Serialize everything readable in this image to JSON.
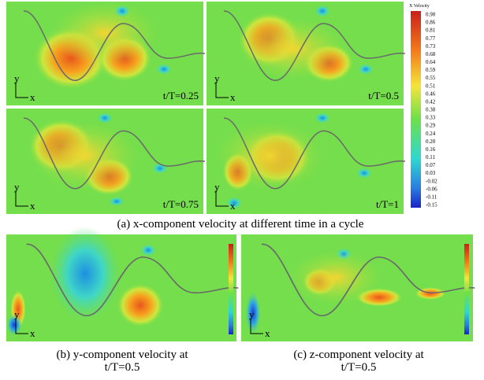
{
  "panels": [
    {
      "time_label": "t/T=0.25",
      "y_axis": "y",
      "x_axis": "x"
    },
    {
      "time_label": "t/T=0.5",
      "y_axis": "y",
      "x_axis": "x"
    },
    {
      "time_label": "t/T=0.75",
      "y_axis": "y",
      "x_axis": "x"
    },
    {
      "time_label": "t/T=1",
      "y_axis": "y",
      "x_axis": "x"
    },
    {
      "y_axis": "y",
      "x_axis": "x"
    },
    {
      "y_axis": "y",
      "x_axis": "x"
    }
  ],
  "colorbar": {
    "title": "X Velocity",
    "ticks": [
      "0.90",
      "0.86",
      "0.81",
      "0.77",
      "0.73",
      "0.68",
      "0.64",
      "0.59",
      "0.55",
      "0.51",
      "0.46",
      "0.42",
      "0.38",
      "0.33",
      "0.29",
      "0.24",
      "0.20",
      "0.16",
      "0.11",
      "0.07",
      "0.03",
      "-0.02",
      "-0.06",
      "-0.11",
      "-0.15"
    ]
  },
  "captions": {
    "a": "(a) x-component velocity at different time in a cycle",
    "b": [
      "(b) y-component velocity at",
      "t/T=0.5"
    ],
    "c": [
      "(c) z-component velocity at",
      "t/T=0.5"
    ]
  }
}
